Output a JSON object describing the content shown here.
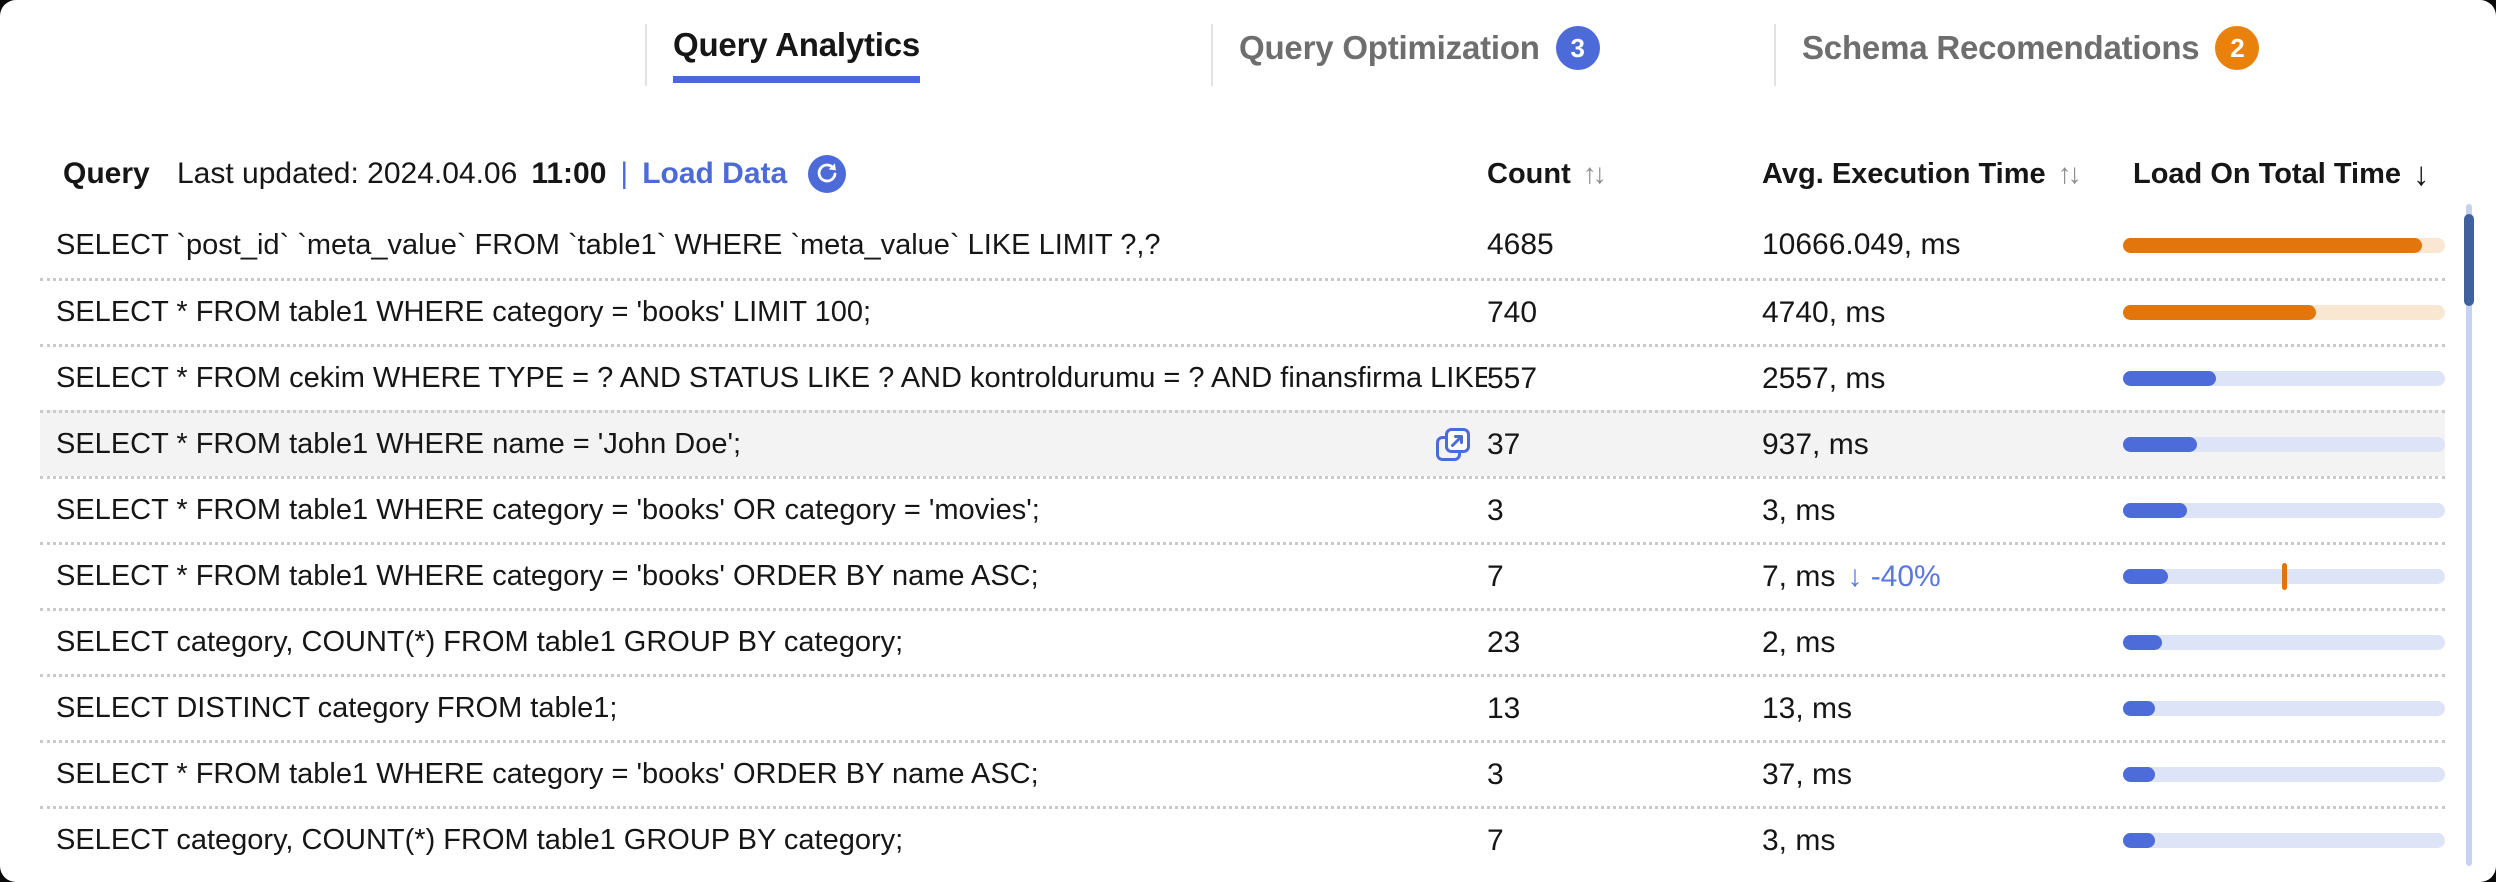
{
  "colors": {
    "accent_blue": "#4c6bd9",
    "badge_orange": "#e8820d",
    "bar_blue": "#4d6bd9",
    "bar_blue_track": "#dee4f8",
    "bar_orange": "#e2760c",
    "bar_orange_track": "#fae7d1",
    "tick_orange": "#e0750e",
    "delta_blue": "#5b77df",
    "active_tab_underline": "#4a69d8",
    "scrollbar_thumb": "#40609e",
    "scrollbar_track": "#c7d2f0",
    "row_highlight": "#f3f3f3"
  },
  "tabs": [
    {
      "label": "Query Analytics",
      "badge": "",
      "badge_color": "",
      "active": true
    },
    {
      "label": "Query Optimization",
      "badge": "3",
      "badge_color": "blue",
      "active": false
    },
    {
      "label": "Schema Recomendations",
      "badge": "2",
      "badge_color": "orange",
      "active": false
    }
  ],
  "header": {
    "query_label": "Query",
    "last_updated": "Last updated: 2024.04.06",
    "last_updated_time": "11:00",
    "separator": "|",
    "load_data_label": "Load Data",
    "refresh_icon": "refresh-circle-icon",
    "columns": [
      {
        "label": "Count",
        "sort": "unsorted"
      },
      {
        "label": "Avg. Execution Time",
        "sort": "unsorted"
      },
      {
        "label": "Load On Total Time",
        "sort": "desc"
      }
    ]
  },
  "sort_icons": {
    "unsorted": "↑↓",
    "desc": "↓"
  },
  "rows": [
    {
      "query": "SELECT `post_id` `meta_value` FROM `table1` WHERE `meta_value` LIKE LIMIT ?,?",
      "count": "4685",
      "time": "10666.049, ms",
      "delta": "",
      "highlighted": false,
      "export_icon": false,
      "bar": {
        "color": "orange",
        "fill_pct": 93,
        "tick_pct": null
      }
    },
    {
      "query": "SELECT * FROM table1 WHERE category = 'books' LIMIT 100;",
      "count": "740",
      "time": "4740, ms",
      "delta": "",
      "highlighted": false,
      "export_icon": false,
      "bar": {
        "color": "orange",
        "fill_pct": 60,
        "tick_pct": null
      }
    },
    {
      "query": "SELECT * FROM cekim WHERE TYPE = ? AND STATUS LIKE ? AND kontroldurumu = ? AND finansfirma LIKE ?",
      "count": "557",
      "time": "2557, ms",
      "delta": "",
      "highlighted": false,
      "export_icon": false,
      "bar": {
        "color": "blue",
        "fill_pct": 29,
        "tick_pct": null
      }
    },
    {
      "query": "SELECT * FROM table1 WHERE name = 'John Doe';",
      "count": "37",
      "time": "937, ms",
      "delta": "",
      "highlighted": true,
      "export_icon": true,
      "bar": {
        "color": "blue",
        "fill_pct": 23,
        "tick_pct": null
      }
    },
    {
      "query": "SELECT * FROM table1 WHERE category = 'books' OR category = 'movies';",
      "count": "3",
      "time": "3, ms",
      "delta": "",
      "highlighted": false,
      "export_icon": false,
      "bar": {
        "color": "blue",
        "fill_pct": 20,
        "tick_pct": null
      }
    },
    {
      "query": "SELECT * FROM table1 WHERE category = 'books' ORDER BY name ASC;",
      "count": "7",
      "time": "7, ms",
      "delta": "↓ -40%",
      "highlighted": false,
      "export_icon": false,
      "bar": {
        "color": "blue",
        "fill_pct": 14,
        "tick_pct": 50
      }
    },
    {
      "query": "SELECT category, COUNT(*) FROM table1 GROUP BY category;",
      "count": "23",
      "time": "2, ms",
      "delta": "",
      "highlighted": false,
      "export_icon": false,
      "bar": {
        "color": "blue",
        "fill_pct": 12,
        "tick_pct": null
      }
    },
    {
      "query": "SELECT DISTINCT category FROM table1;",
      "count": "13",
      "time": "13, ms",
      "delta": "",
      "highlighted": false,
      "export_icon": false,
      "bar": {
        "color": "blue",
        "fill_pct": 10,
        "tick_pct": null
      }
    },
    {
      "query": "SELECT * FROM table1 WHERE category = 'books' ORDER BY name ASC;",
      "count": "3",
      "time": "37, ms",
      "delta": "",
      "highlighted": false,
      "export_icon": false,
      "bar": {
        "color": "blue",
        "fill_pct": 10,
        "tick_pct": null
      }
    },
    {
      "query": "SELECT category, COUNT(*) FROM table1 GROUP BY category;",
      "count": "7",
      "time": "3, ms",
      "delta": "",
      "highlighted": false,
      "export_icon": false,
      "bar": {
        "color": "blue",
        "fill_pct": 10,
        "tick_pct": null
      }
    }
  ]
}
